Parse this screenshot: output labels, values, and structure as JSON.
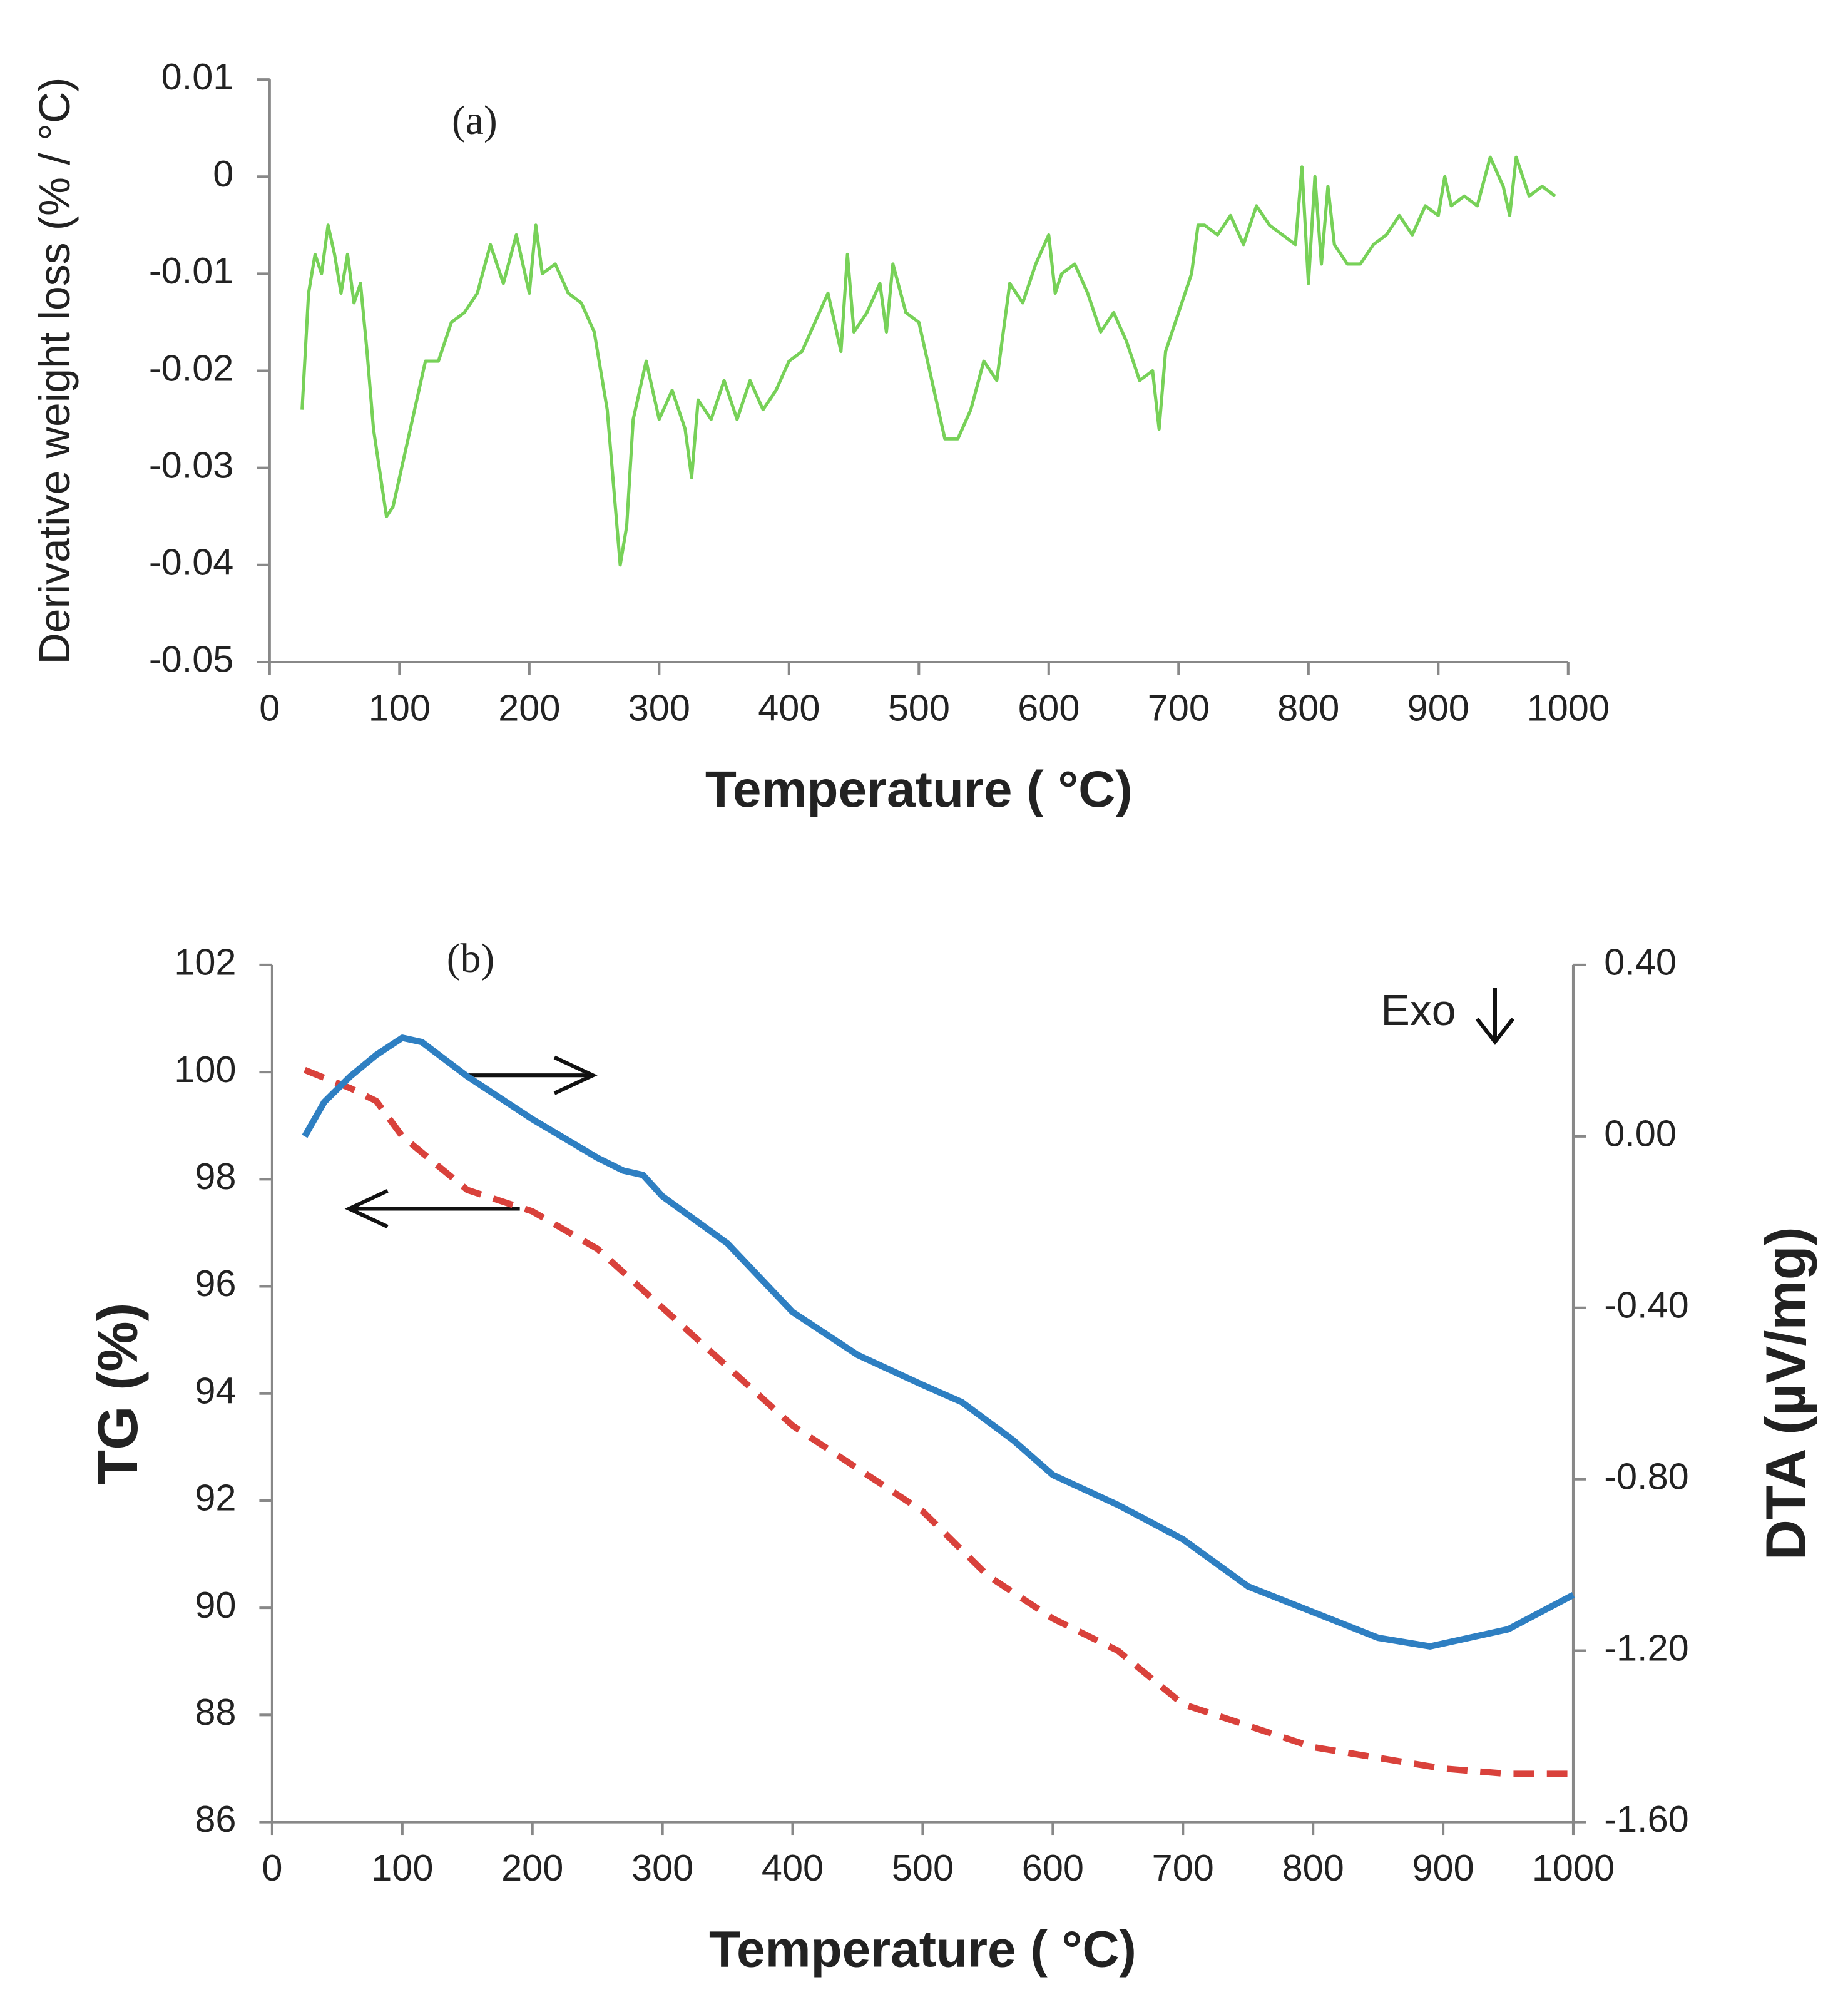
{
  "chart_data": [
    {
      "type": "line",
      "annotations": [
        "(a)"
      ],
      "xlabel": "Temperature ( °C)",
      "ylabel": "Derivative weight loss (% / °C)",
      "xlim": [
        0,
        1000
      ],
      "xticks": [
        0,
        100,
        200,
        300,
        400,
        500,
        600,
        700,
        800,
        900,
        1000
      ],
      "ylim": [
        -0.05,
        0.01
      ],
      "yticks": [
        0.01,
        0,
        -0.01,
        -0.02,
        -0.03,
        -0.04,
        -0.05
      ],
      "x": [
        25,
        30,
        35,
        40,
        45,
        50,
        55,
        60,
        65,
        70,
        75,
        80,
        90,
        95,
        100,
        110,
        120,
        130,
        140,
        150,
        160,
        170,
        180,
        190,
        200,
        205,
        210,
        220,
        230,
        240,
        250,
        260,
        265,
        270,
        275,
        280,
        290,
        300,
        310,
        320,
        325,
        330,
        340,
        350,
        360,
        370,
        380,
        390,
        400,
        410,
        420,
        430,
        440,
        445,
        450,
        460,
        470,
        475,
        480,
        490,
        500,
        510,
        520,
        530,
        540,
        550,
        560,
        570,
        580,
        590,
        600,
        605,
        610,
        620,
        630,
        640,
        650,
        660,
        670,
        680,
        685,
        690,
        700,
        710,
        715,
        720,
        730,
        740,
        750,
        760,
        770,
        780,
        790,
        795,
        800,
        805,
        810,
        815,
        820,
        830,
        840,
        850,
        860,
        870,
        880,
        890,
        900,
        905,
        910,
        920,
        930,
        940,
        950,
        955,
        960,
        970,
        980,
        990
      ],
      "series": [
        {
          "color": "#77d158",
          "values": [
            -0.024,
            -0.012,
            -0.008,
            -0.01,
            -0.005,
            -0.008,
            -0.012,
            -0.008,
            -0.013,
            -0.011,
            -0.018,
            -0.026,
            -0.035,
            -0.034,
            -0.031,
            -0.025,
            -0.019,
            -0.019,
            -0.015,
            -0.014,
            -0.012,
            -0.007,
            -0.011,
            -0.006,
            -0.012,
            -0.005,
            -0.01,
            -0.009,
            -0.012,
            -0.013,
            -0.016,
            -0.024,
            -0.032,
            -0.04,
            -0.036,
            -0.025,
            -0.019,
            -0.025,
            -0.022,
            -0.026,
            -0.031,
            -0.023,
            -0.025,
            -0.021,
            -0.025,
            -0.021,
            -0.024,
            -0.022,
            -0.019,
            -0.018,
            -0.015,
            -0.012,
            -0.018,
            -0.008,
            -0.016,
            -0.014,
            -0.011,
            -0.016,
            -0.009,
            -0.014,
            -0.015,
            -0.021,
            -0.027,
            -0.027,
            -0.024,
            -0.019,
            -0.021,
            -0.011,
            -0.013,
            -0.009,
            -0.006,
            -0.012,
            -0.01,
            -0.009,
            -0.012,
            -0.016,
            -0.014,
            -0.017,
            -0.021,
            -0.02,
            -0.026,
            -0.018,
            -0.014,
            -0.01,
            -0.005,
            -0.005,
            -0.006,
            -0.004,
            -0.007,
            -0.003,
            -0.005,
            -0.006,
            -0.007,
            0.001,
            -0.011,
            0.0,
            -0.009,
            -0.001,
            -0.007,
            -0.009,
            -0.009,
            -0.007,
            -0.006,
            -0.004,
            -0.006,
            -0.003,
            -0.004,
            0.0,
            -0.003,
            -0.002,
            -0.003,
            0.002,
            -0.001,
            -0.004,
            0.002,
            -0.002,
            -0.001,
            -0.002
          ]
        }
      ]
    },
    {
      "type": "line",
      "annotations": [
        "(b)",
        "Exo"
      ],
      "xlabel": "Temperature ( °C)",
      "ylabel": "TG (%)",
      "y2label": "DTA (µV/mg)",
      "xlim": [
        0,
        1000
      ],
      "xticks": [
        0,
        100,
        200,
        300,
        400,
        500,
        600,
        700,
        800,
        900,
        1000
      ],
      "ylim": [
        86,
        102
      ],
      "yticks": [
        86,
        88,
        90,
        92,
        94,
        96,
        98,
        100,
        102
      ],
      "y2lim": [
        -1.6,
        0.4
      ],
      "y2ticks": [
        {
          "value": -1.6,
          "label": "-1.60"
        },
        {
          "value": -1.2,
          "label": "-1.20"
        },
        {
          "value": -0.8,
          "label": "-0.80"
        },
        {
          "value": -0.4,
          "label": "-0.40"
        },
        {
          "value": 0,
          "label": "0.00"
        },
        {
          "value": 0.4,
          "label": "0.40"
        }
      ],
      "series": [
        {
          "color": "#d9413b",
          "style": "dashed",
          "axis": "y",
          "x": [
            25,
            60,
            80,
            100,
            130,
            150,
            200,
            250,
            300,
            350,
            400,
            450,
            500,
            550,
            600,
            650,
            700,
            750,
            800,
            900,
            950,
            1000
          ],
          "values": [
            100.04,
            99.7,
            99.46,
            98.8,
            98.2,
            97.8,
            97.4,
            96.7,
            95.6,
            94.5,
            93.4,
            92.6,
            91.8,
            90.6,
            89.8,
            89.2,
            88.2,
            87.8,
            87.4,
            87.0,
            86.9,
            86.9
          ]
        },
        {
          "color": "#2e7fc2",
          "style": "solid",
          "axis": "y2",
          "x": [
            25,
            40,
            60,
            80,
            100,
            115,
            150,
            200,
            250,
            270,
            285,
            300,
            350,
            400,
            450,
            500,
            530,
            570,
            600,
            650,
            700,
            750,
            800,
            850,
            890,
            950,
            1000
          ],
          "values": [
            0.0,
            0.08,
            0.14,
            0.19,
            0.23,
            0.22,
            0.14,
            0.04,
            -0.05,
            -0.08,
            -0.09,
            -0.14,
            -0.25,
            -0.41,
            -0.51,
            -0.58,
            -0.62,
            -0.71,
            -0.79,
            -0.86,
            -0.94,
            -1.05,
            -1.11,
            -1.17,
            -1.19,
            -1.15,
            -1.07
          ]
        }
      ]
    }
  ]
}
